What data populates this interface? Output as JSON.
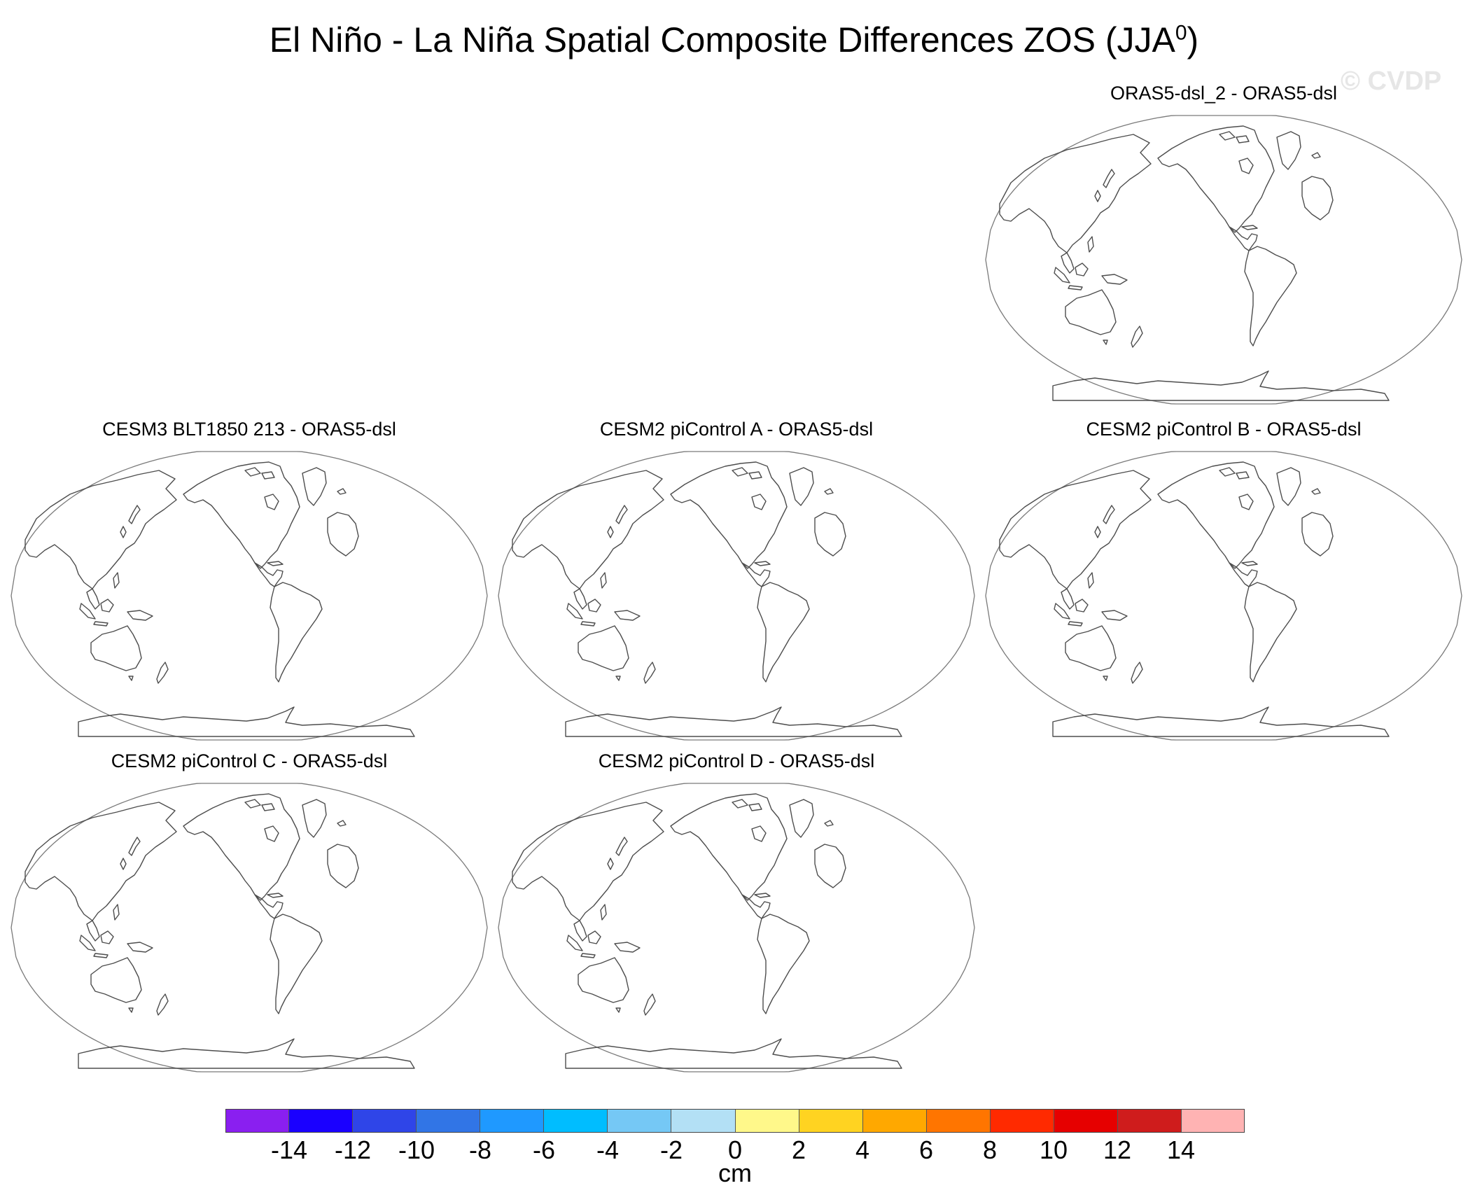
{
  "title": {
    "main": "El Niño - La Niña Spatial Composite Differences ZOS (JJA",
    "superscript": "0",
    "close": ")"
  },
  "watermark": "© CVDP",
  "chart_data": {
    "type": "heatmap",
    "title": "El Niño - La Niña Spatial Composite Differences ZOS (JJA0)",
    "variable": "ZOS",
    "season": "JJA0",
    "projection": "Robinson (Pacific-centered global map)",
    "panels": [
      {
        "name": "ORAS5-dsl_2 - ORAS5-dsl",
        "field": "blank (no shading)"
      },
      {
        "name": "CESM3 BLT1850 213 - ORAS5-dsl",
        "field": "blank (no shading)"
      },
      {
        "name": "CESM2 piControl A - ORAS5-dsl",
        "field": "blank (no shading)"
      },
      {
        "name": "CESM2 piControl B - ORAS5-dsl",
        "field": "blank (no shading)"
      },
      {
        "name": "CESM2 piControl C - ORAS5-dsl",
        "field": "blank (no shading)"
      },
      {
        "name": "CESM2 piControl D - ORAS5-dsl",
        "field": "blank (no shading)"
      }
    ],
    "colorbar": {
      "units": "cm",
      "tick_labels": [
        "-14",
        "-12",
        "-10",
        "-8",
        "-6",
        "-4",
        "-2",
        "0",
        "2",
        "4",
        "6",
        "8",
        "10",
        "12",
        "14"
      ],
      "colors": [
        "#8a1ff0",
        "#1a00ff",
        "#2f45e8",
        "#3175e6",
        "#1f99ff",
        "#00bdff",
        "#75c8f5",
        "#b3e0f5",
        "#fff88a",
        "#ffd321",
        "#ffa800",
        "#ff7500",
        "#ff2a00",
        "#e60000",
        "#cf1c1c",
        "#ffb3b3"
      ]
    }
  },
  "colors": {
    "coast": "#4d4d4d",
    "frame": "#7a7a7a"
  }
}
